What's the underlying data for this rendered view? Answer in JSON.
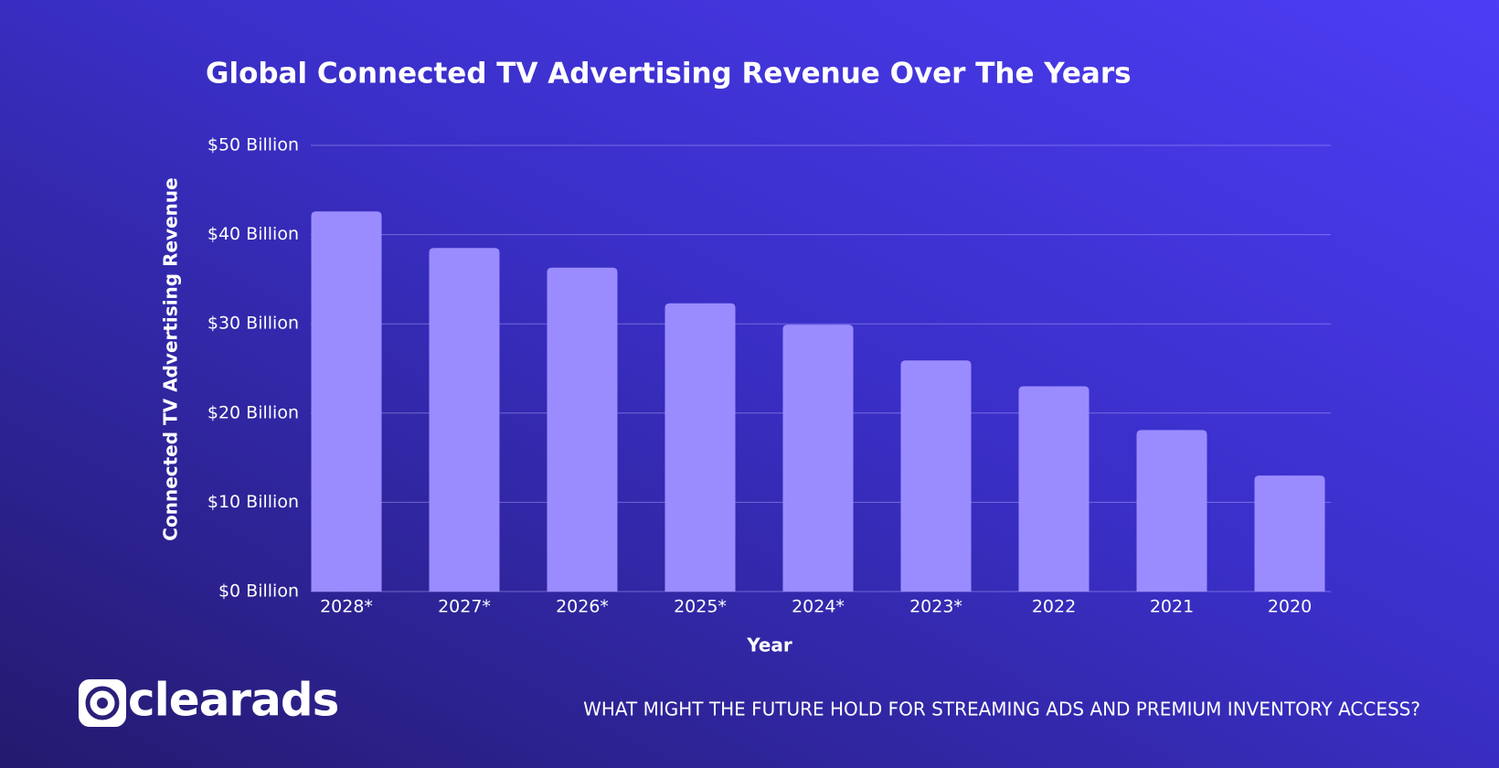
{
  "chart_data": {
    "type": "bar",
    "title": "Global Connected TV Advertising Revenue Over The Years",
    "y_label": "Connected TV Advertising Revenue",
    "x_label": "Year",
    "categories": [
      "2028*",
      "2027*",
      "2026*",
      "2025*",
      "2024*",
      "2023*",
      "2022",
      "2021",
      "2020"
    ],
    "values": [
      42.6,
      38.5,
      36.3,
      32.3,
      29.9,
      25.9,
      23.0,
      18.1,
      13.0
    ],
    "color": "#9a8cff",
    "ylim": [
      0,
      50
    ],
    "yticks": [
      {
        "value": 0,
        "label": "$0 Billion"
      },
      {
        "value": 10,
        "label": "$10 Billion"
      },
      {
        "value": 20,
        "label": "$20 Billion"
      },
      {
        "value": 30,
        "label": "$30 Billion"
      },
      {
        "value": 40,
        "label": "$40 Billion"
      },
      {
        "value": 50,
        "label": "$50 Billion"
      }
    ],
    "grid": true
  },
  "footer": {
    "logo": "clearads",
    "tagline": "WHAT MIGHT THE FUTURE HOLD FOR STREAMING ADS AND PREMIUM INVENTORY ACCESS?"
  }
}
